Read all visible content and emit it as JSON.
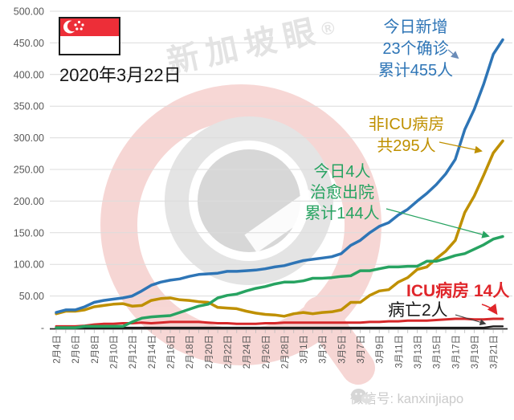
{
  "page": {
    "date_label": "2020年3月22日"
  },
  "flag": {
    "country": "singapore",
    "red": "#ed2e38"
  },
  "watermark": {
    "brand": "新加坡眼",
    "registered": "®"
  },
  "footer": {
    "icon": "wechat-icon",
    "text": "微信号: kanxinjiapo"
  },
  "annotations": {
    "confirmed": {
      "lines": [
        "今日新增",
        "23个确诊",
        "累计455人"
      ],
      "color": "#2e75b6"
    },
    "non_icu": {
      "lines": [
        "非ICU病房",
        "共295人"
      ],
      "color": "#bf9000"
    },
    "discharged": {
      "lines": [
        "今日4人",
        "治愈出院",
        "累计144人"
      ],
      "color": "#27a361"
    },
    "icu": {
      "text": "ICU病房 14人",
      "color": "#e0262b"
    },
    "deaths": {
      "text": "病亡2人",
      "color": "#1a1a1a"
    }
  },
  "chart_data": {
    "type": "line",
    "title": "",
    "xlabel": "",
    "ylabel": "",
    "ylim": [
      0,
      500
    ],
    "y_tick_step": 50,
    "grid": true,
    "x_tick_rotation": 90,
    "y_tick_labels": [
      "500.00",
      "450.00",
      "400.00",
      "350.00",
      "300.00",
      "250.00",
      "200.00",
      "150.00",
      "100.00",
      "50.00",
      "-"
    ],
    "x_tick_labels": [
      "2月4日",
      "2月6日",
      "2月8日",
      "2月10日",
      "2月12日",
      "2月14日",
      "2月16日",
      "2月18日",
      "2月20日",
      "2月22日",
      "2月24日",
      "2月26日",
      "2月28日",
      "3月1日",
      "3月3日",
      "3月5日",
      "3月7日",
      "3月9日",
      "3月11日",
      "3月13日",
      "3月15日",
      "3月17日",
      "3月19日",
      "3月21日"
    ],
    "dates": [
      "2月4日",
      "2月5日",
      "2月6日",
      "2月7日",
      "2月8日",
      "2月9日",
      "2月10日",
      "2月11日",
      "2月12日",
      "2月13日",
      "2月14日",
      "2月15日",
      "2月16日",
      "2月17日",
      "2月18日",
      "2月19日",
      "2月20日",
      "2月21日",
      "2月22日",
      "2月23日",
      "2月24日",
      "2月25日",
      "2月26日",
      "2月27日",
      "2月28日",
      "2月29日",
      "3月1日",
      "3月2日",
      "3月3日",
      "3月4日",
      "3月5日",
      "3月6日",
      "3月7日",
      "3月8日",
      "3月9日",
      "3月10日",
      "3月11日",
      "3月12日",
      "3月13日",
      "3月14日",
      "3月15日",
      "3月16日",
      "3月17日",
      "3月18日",
      "3月19日",
      "3月20日",
      "3月21日",
      "3月22日"
    ],
    "series": [
      {
        "key": "deaths",
        "name": "病亡",
        "color": "#1a1a1a",
        "width": 2.2,
        "values": [
          0,
          0,
          0,
          0,
          0,
          0,
          0,
          0,
          0,
          0,
          0,
          0,
          0,
          0,
          0,
          0,
          0,
          0,
          0,
          0,
          0,
          0,
          0,
          0,
          0,
          0,
          0,
          0,
          0,
          0,
          0,
          0,
          0,
          0,
          0,
          0,
          0,
          0,
          0,
          0,
          0,
          0,
          0,
          0,
          0,
          0,
          2,
          2
        ]
      },
      {
        "key": "icu",
        "name": "ICU病房",
        "color": "#d5282a",
        "width": 3,
        "values": [
          2,
          2,
          2,
          3,
          5,
          6,
          6,
          7,
          7,
          8,
          7,
          8,
          9,
          9,
          9,
          9,
          8,
          7,
          7,
          6,
          6,
          6,
          7,
          7,
          8,
          8,
          8,
          8,
          8,
          8,
          8,
          8,
          8,
          9,
          9,
          10,
          10,
          11,
          11,
          11,
          12,
          13,
          14,
          14,
          13,
          13,
          14,
          14
        ]
      },
      {
        "key": "non_icu",
        "name": "非ICU病房",
        "color": "#bf9000",
        "width": 3.5,
        "values": [
          22,
          26,
          26,
          28,
          33,
          35,
          37,
          38,
          34,
          35,
          43,
          46,
          47,
          44,
          43,
          41,
          40,
          32,
          31,
          30,
          26,
          23,
          21,
          20,
          18,
          22,
          24,
          22,
          24,
          25,
          28,
          40,
          40,
          51,
          58,
          60,
          72,
          79,
          92,
          96,
          109,
          121,
          138,
          182,
          208,
          241,
          276,
          295
        ]
      },
      {
        "key": "discharged",
        "name": "治愈出院累计",
        "color": "#27a361",
        "width": 3.5,
        "values": [
          0,
          0,
          0,
          2,
          2,
          2,
          2,
          2,
          9,
          15,
          17,
          18,
          19,
          24,
          29,
          34,
          37,
          47,
          51,
          53,
          58,
          62,
          65,
          69,
          72,
          72,
          74,
          78,
          78,
          79,
          81,
          82,
          90,
          90,
          93,
          96,
          96,
          97,
          97,
          105,
          105,
          109,
          114,
          117,
          124,
          131,
          140,
          144
        ]
      },
      {
        "key": "confirmed",
        "name": "累计确诊",
        "color": "#2e75b6",
        "width": 3.5,
        "values": [
          24,
          28,
          28,
          33,
          40,
          43,
          45,
          47,
          50,
          58,
          67,
          72,
          75,
          77,
          81,
          84,
          85,
          86,
          89,
          89,
          90,
          91,
          93,
          96,
          98,
          102,
          106,
          108,
          110,
          112,
          117,
          130,
          138,
          150,
          160,
          166,
          178,
          187,
          200,
          212,
          226,
          243,
          266,
          313,
          345,
          385,
          432,
          455
        ]
      }
    ]
  }
}
